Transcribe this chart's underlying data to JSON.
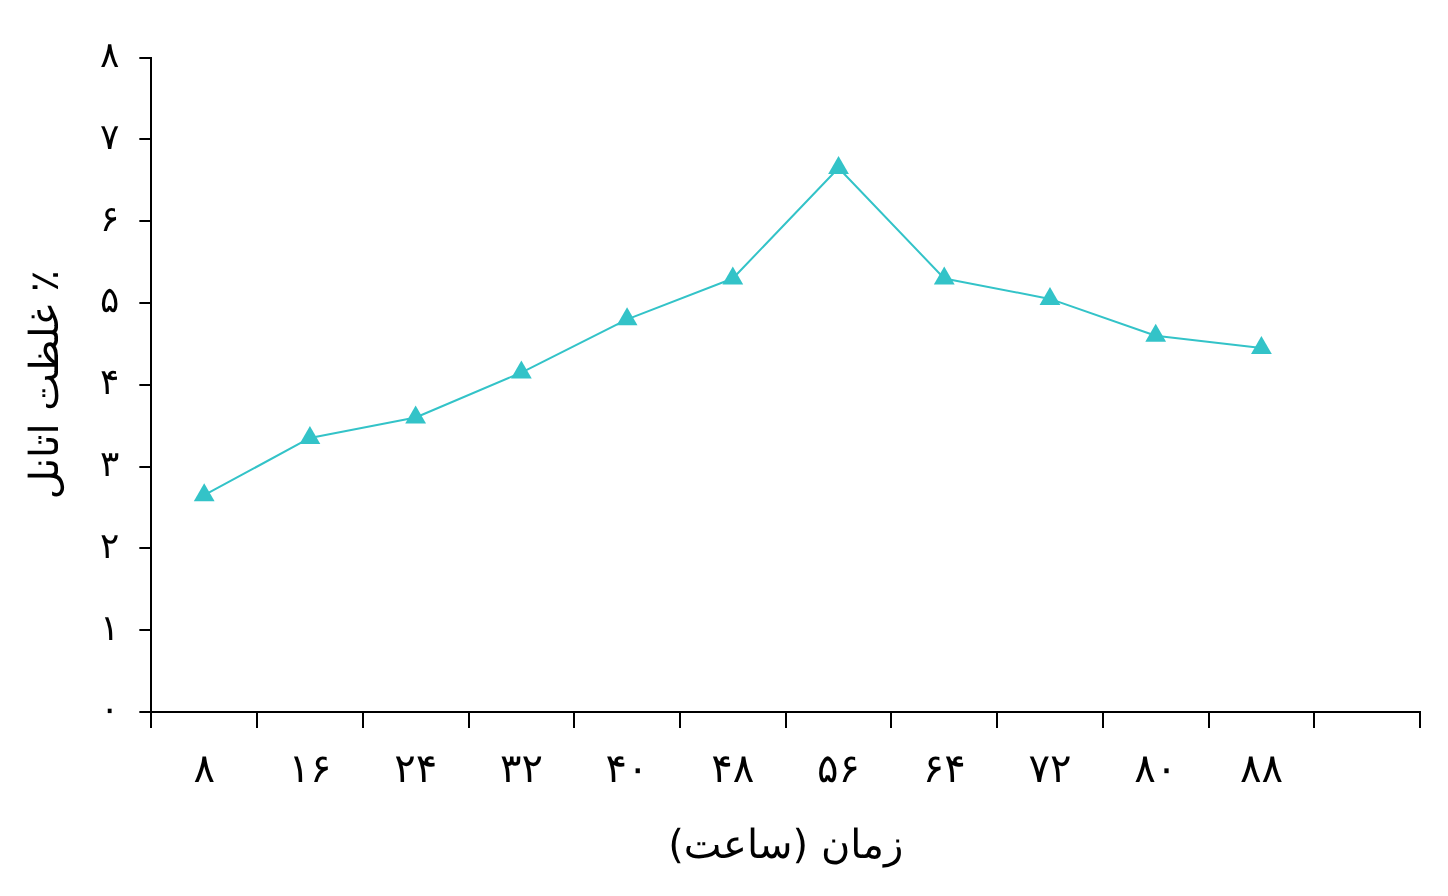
{
  "chart_data": {
    "type": "line",
    "xlabel": "زمان (ساعت)",
    "ylabel": "غلظت اتانل ٪",
    "categories": [
      "۸",
      "۱۶",
      "۲۴",
      "۳۲",
      "۴۰",
      "۴۸",
      "۵۶",
      "۶۴",
      "۷۲",
      "۸۰",
      "۸۸",
      null
    ],
    "series": [
      {
        "color": "#33c3c8",
        "values": [
          2.65,
          3.35,
          3.6,
          4.15,
          4.8,
          5.3,
          6.65,
          5.3,
          5.05,
          4.6,
          4.45,
          null
        ]
      }
    ],
    "ylim": [
      0,
      8
    ],
    "yticks": [
      {
        "value": 0,
        "label": "۰"
      },
      {
        "value": 1,
        "label": "۱"
      },
      {
        "value": 2,
        "label": "۲"
      },
      {
        "value": 3,
        "label": "۳"
      },
      {
        "value": 4,
        "label": "۴"
      },
      {
        "value": 5,
        "label": "۵"
      },
      {
        "value": 6,
        "label": "۶"
      },
      {
        "value": 7,
        "label": "۷"
      },
      {
        "value": 8,
        "label": "۸"
      }
    ],
    "grid": false,
    "legend": false,
    "marker": "triangle",
    "line_style": "solid"
  }
}
